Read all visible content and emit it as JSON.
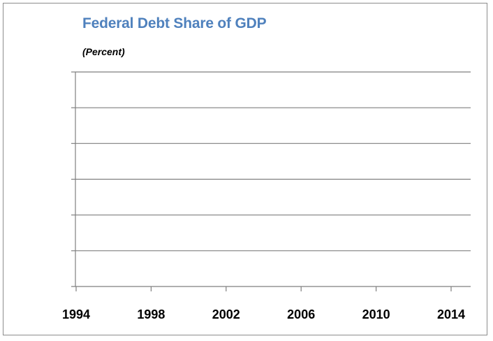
{
  "chart_data": {
    "type": "line",
    "title": "Federal Debt Share of GDP",
    "subtitle": "(Percent)",
    "xlabel": "",
    "ylabel": "",
    "x_ticks": [
      1994,
      1998,
      2002,
      2006,
      2010,
      2014
    ],
    "xlim": [
      1994,
      2014
    ],
    "y_gridlines": 6,
    "grid": true,
    "legend": "none",
    "series": []
  },
  "colors": {
    "title": "#4f81bd",
    "gridline": "#7f7f7f",
    "axis": "#7f7f7f",
    "border": "#8c8c8c"
  }
}
